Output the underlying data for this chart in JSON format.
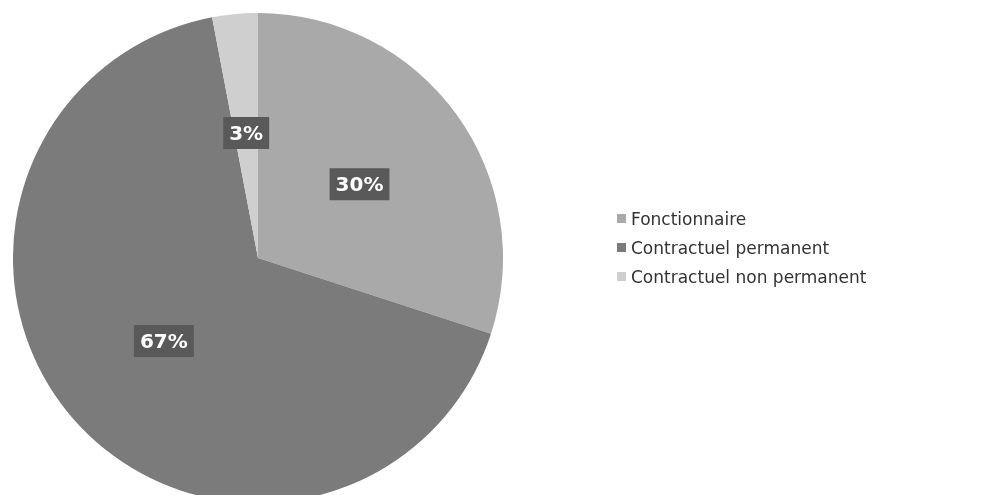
{
  "chart_data": {
    "type": "pie",
    "categories": [
      "Fonctionnaire",
      "Contractuel permanent",
      "Contractuel non permanent"
    ],
    "values": [
      30,
      67,
      3
    ],
    "colors": [
      "#a9a9a9",
      "#7b7b7b",
      "#cfcfcf"
    ],
    "value_labels": [
      "30%",
      "67%",
      "3%"
    ],
    "legend": "right"
  }
}
